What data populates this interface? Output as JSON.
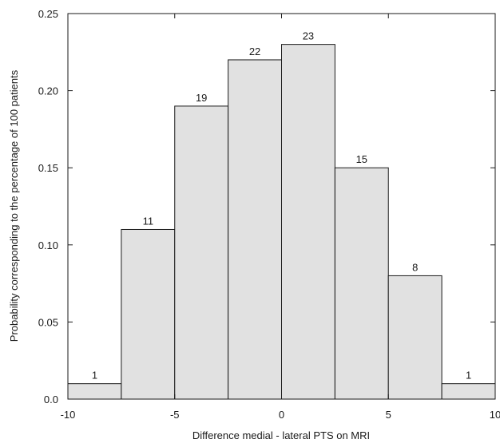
{
  "chart_data": {
    "type": "bar",
    "title": "",
    "xlabel": "Difference medial - lateral PTS on MRI",
    "ylabel": "Probability corresponding to the percentage of 100 patients",
    "xlim": [
      -10,
      10
    ],
    "ylim": [
      0,
      0.25
    ],
    "xticks": [
      "-10",
      "-5",
      "0",
      "5",
      "10"
    ],
    "yticks": [
      "0.0",
      "0.05",
      "0.10",
      "0.15",
      "0.20",
      "0.25"
    ],
    "bins": [
      {
        "x0": -10,
        "x1": -7.5,
        "value": 0.01,
        "label": "1"
      },
      {
        "x0": -7.5,
        "x1": -5,
        "value": 0.11,
        "label": "11"
      },
      {
        "x0": -5,
        "x1": -2.5,
        "value": 0.19,
        "label": "19"
      },
      {
        "x0": -2.5,
        "x1": 0,
        "value": 0.22,
        "label": "22"
      },
      {
        "x0": 0,
        "x1": 2.5,
        "value": 0.23,
        "label": "23"
      },
      {
        "x0": 2.5,
        "x1": 5,
        "value": 0.15,
        "label": "15"
      },
      {
        "x0": 5,
        "x1": 7.5,
        "value": 0.08,
        "label": "8"
      },
      {
        "x0": 7.5,
        "x1": 10,
        "value": 0.01,
        "label": "1"
      }
    ],
    "bar_color": "#e1e1e1",
    "bar_edge_color": "#1a1a1a",
    "grid": false
  }
}
